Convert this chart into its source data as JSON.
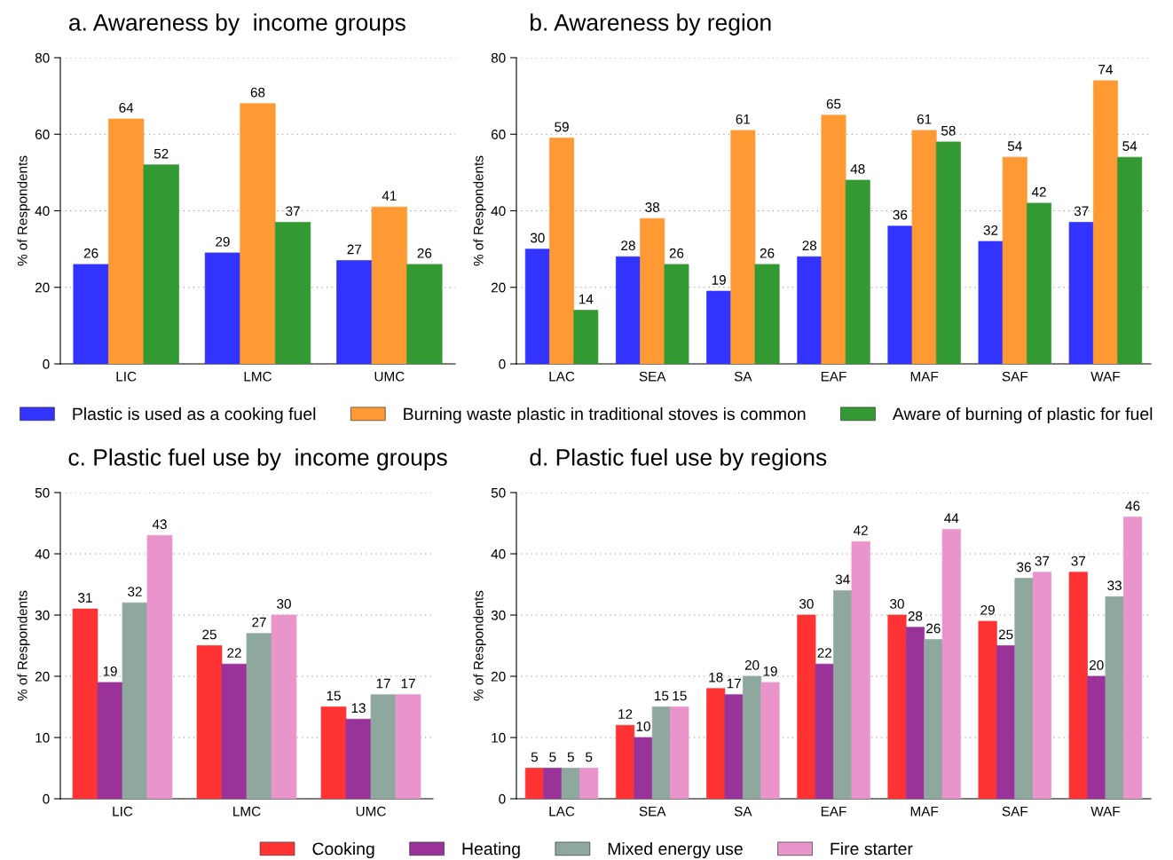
{
  "chart_data": [
    {
      "type": "bar",
      "title": "a. Awareness by  income groups",
      "ylabel": "% of Respondents",
      "categories": [
        "LIC",
        "LMC",
        "UMC"
      ],
      "ylim": [
        0,
        80
      ],
      "yticks": [
        0,
        20,
        40,
        60,
        80
      ],
      "grid": "y",
      "data_labels": true,
      "legend": false,
      "series": [
        {
          "color": "#3333ff",
          "values": [
            26,
            29,
            27
          ]
        },
        {
          "color": "#ff9933",
          "values": [
            64,
            68,
            41
          ]
        },
        {
          "color": "#339933",
          "values": [
            52,
            37,
            26
          ]
        }
      ]
    },
    {
      "type": "bar",
      "title": "b. Awareness by region",
      "ylabel": "% of Respondents",
      "categories": [
        "LAC",
        "SEA",
        "SA",
        "EAF",
        "MAF",
        "SAF",
        "WAF"
      ],
      "ylim": [
        0,
        80
      ],
      "yticks": [
        0,
        20,
        40,
        60,
        80
      ],
      "grid": "y",
      "data_labels": true,
      "legend": "bottom",
      "series": [
        {
          "name": "Plastic is used as a cooking fuel",
          "color": "#3333ff",
          "values": [
            30,
            28,
            19,
            28,
            36,
            32,
            37
          ]
        },
        {
          "name": "Burning waste plastic in traditional stoves is common",
          "color": "#ff9933",
          "values": [
            59,
            38,
            61,
            65,
            61,
            54,
            74
          ]
        },
        {
          "name": "Aware of burning of plastic for fuel",
          "color": "#339933",
          "values": [
            14,
            26,
            26,
            48,
            58,
            42,
            54
          ]
        }
      ]
    },
    {
      "type": "bar",
      "title": "c. Plastic fuel use by  income groups",
      "ylabel": "% of Respondents",
      "categories": [
        "LIC",
        "LMC",
        "UMC"
      ],
      "ylim": [
        0,
        50
      ],
      "yticks": [
        0,
        10,
        20,
        30,
        40,
        50
      ],
      "grid": "y",
      "data_labels": true,
      "legend": false,
      "series": [
        {
          "color": "#ff3333",
          "values": [
            31,
            25,
            15
          ]
        },
        {
          "color": "#993399",
          "values": [
            19,
            22,
            13
          ]
        },
        {
          "color": "#8fa89e",
          "values": [
            32,
            27,
            17
          ]
        },
        {
          "color": "#e995cc",
          "values": [
            43,
            30,
            17
          ]
        }
      ]
    },
    {
      "type": "bar",
      "title": "d. Plastic fuel use by regions",
      "ylabel": "% of Respondents",
      "categories": [
        "LAC",
        "SEA",
        "SA",
        "EAF",
        "MAF",
        "SAF",
        "WAF"
      ],
      "ylim": [
        0,
        50
      ],
      "yticks": [
        0,
        10,
        20,
        30,
        40,
        50
      ],
      "grid": "y",
      "data_labels": true,
      "legend": "bottom",
      "series": [
        {
          "name": "Cooking",
          "color": "#ff3333",
          "values": [
            5,
            12,
            18,
            30,
            30,
            29,
            37
          ]
        },
        {
          "name": "Heating",
          "color": "#993399",
          "values": [
            5,
            10,
            17,
            22,
            28,
            25,
            20
          ]
        },
        {
          "name": "Mixed energy use",
          "color": "#8fa89e",
          "values": [
            5,
            15,
            20,
            34,
            26,
            36,
            33
          ]
        },
        {
          "name": "Fire starter",
          "color": "#e995cc",
          "values": [
            5,
            15,
            19,
            42,
            44,
            37,
            46
          ]
        }
      ]
    }
  ]
}
